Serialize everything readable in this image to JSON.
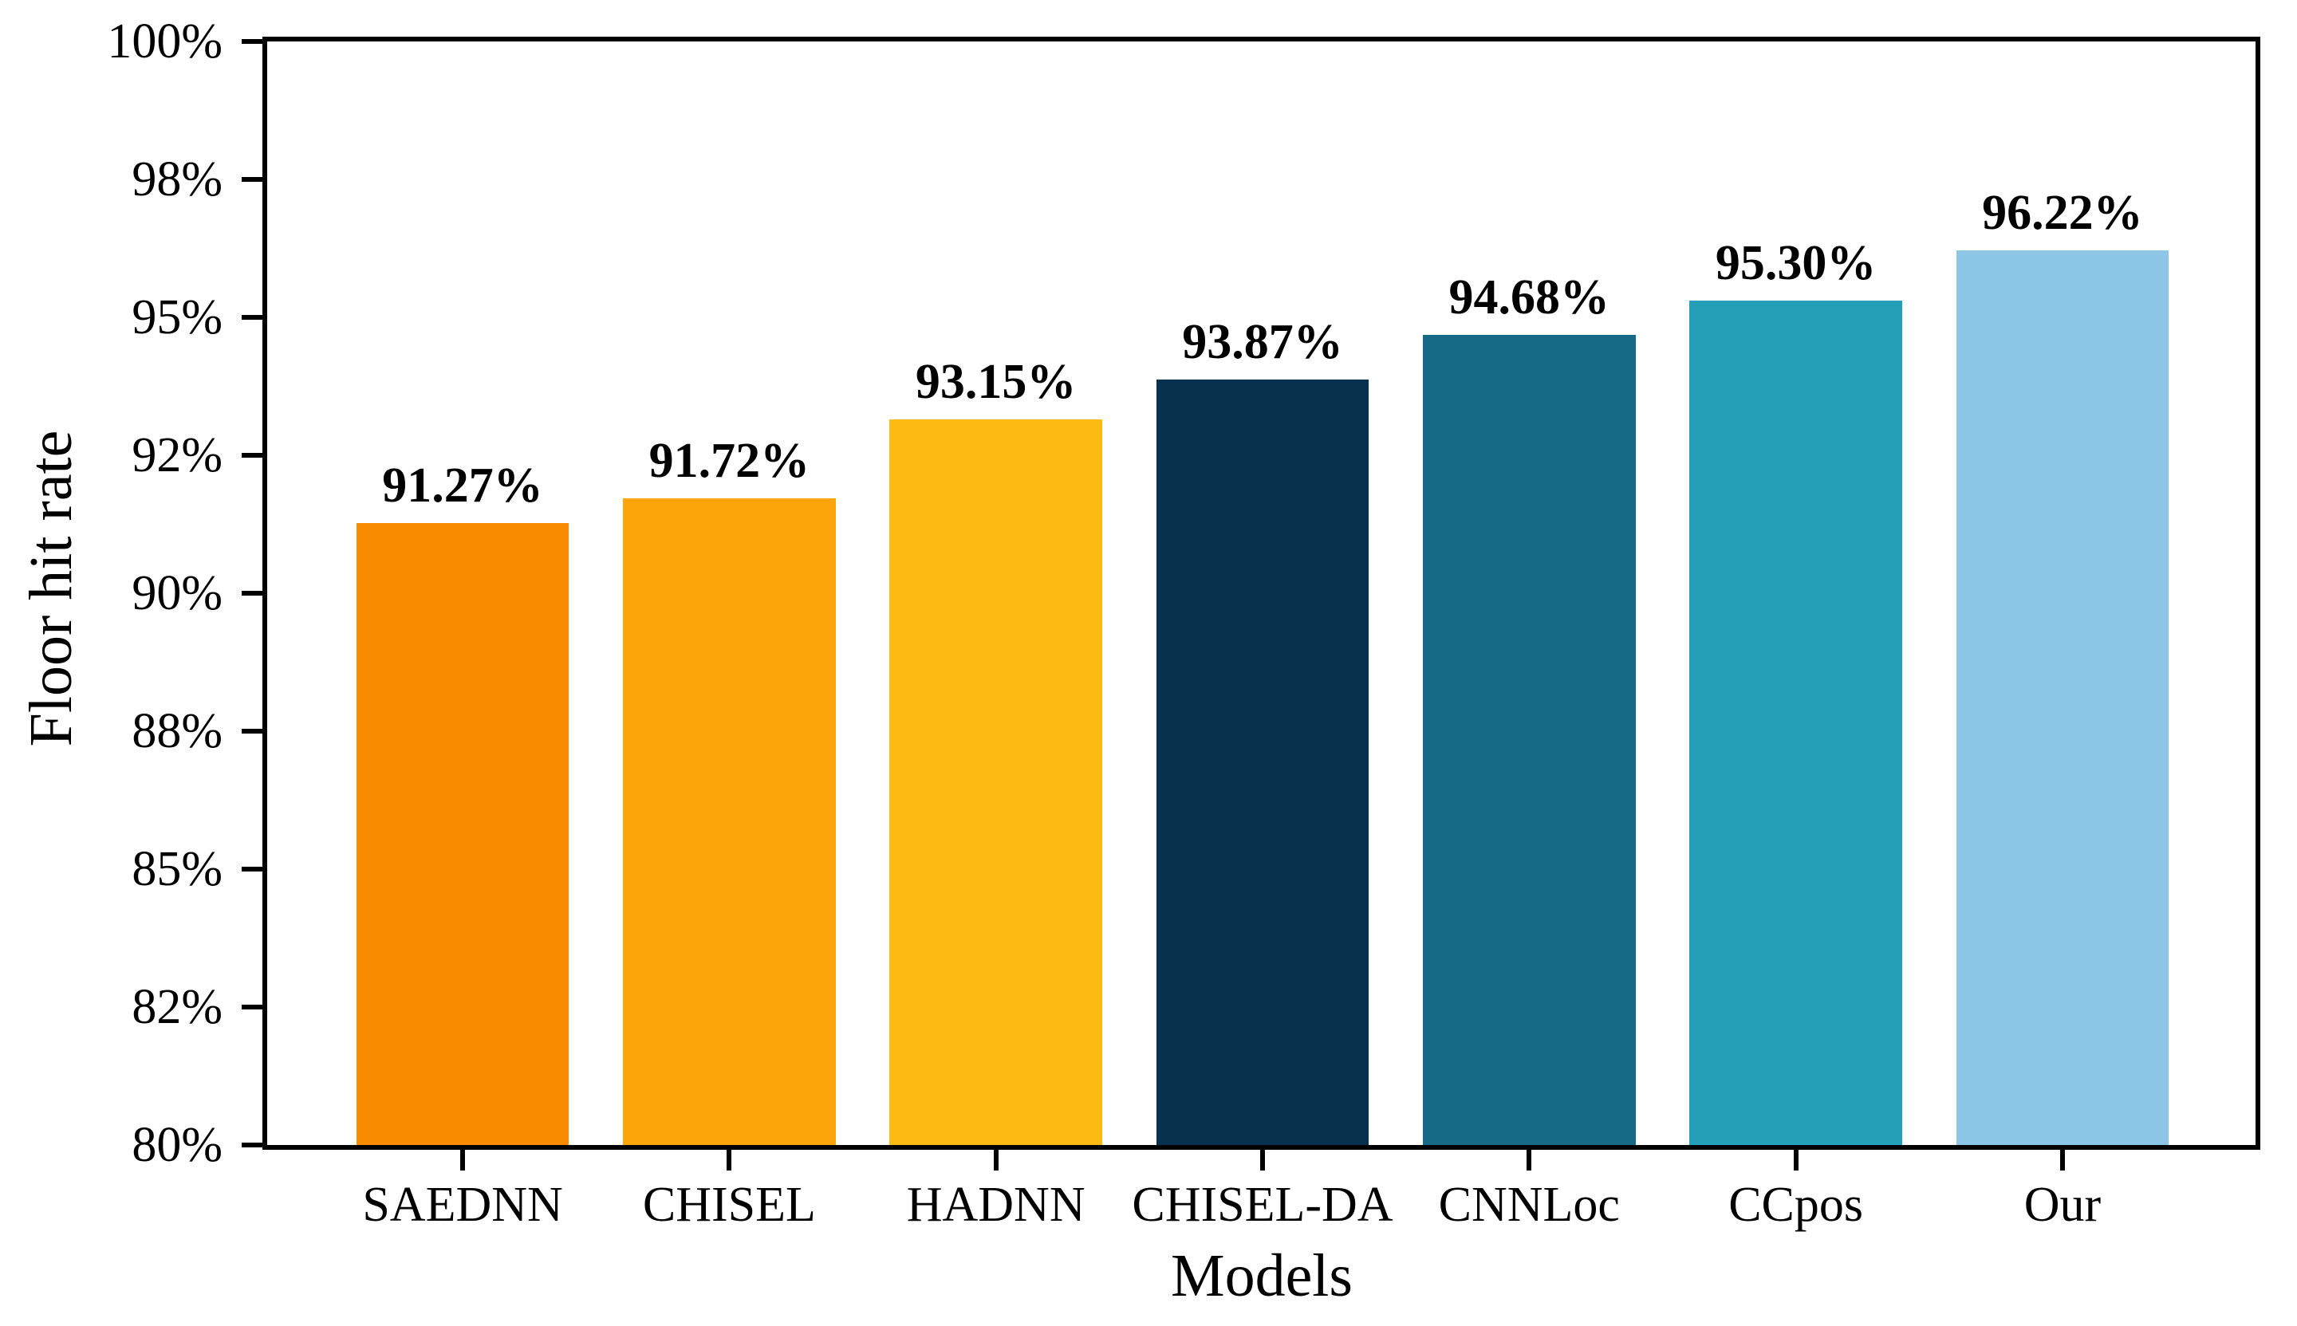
{
  "chart_data": {
    "type": "bar",
    "title": "",
    "xlabel": "Models",
    "ylabel": "Floor hit rate",
    "categories": [
      "SAEDNN",
      "CHISEL",
      "HADNN",
      "CHISEL-DA",
      "CNNLoc",
      "CCpos",
      "Our"
    ],
    "values": [
      91.27,
      91.72,
      93.15,
      93.87,
      94.68,
      95.3,
      96.22
    ],
    "value_labels": [
      "91.27%",
      "91.72%",
      "93.15%",
      "93.87%",
      "94.68%",
      "95.30%",
      "96.22%"
    ],
    "bar_colors": [
      "#F88B00",
      "#FFA50C",
      "#FDBA12",
      "#06324D",
      "#166A85",
      "#259EB8",
      "#8DC6E6"
    ],
    "ylim": [
      80,
      100
    ],
    "ytick_values": [
      80,
      82.5,
      85,
      87.5,
      90,
      92.5,
      95,
      97.5,
      100
    ],
    "ytick_labels": [
      "80%",
      "82%",
      "85%",
      "88%",
      "90%",
      "92%",
      "95%",
      "98%",
      "100%"
    ],
    "grid": false,
    "legend": null,
    "axis_color": "#000000",
    "background_color": "#ffffff"
  }
}
